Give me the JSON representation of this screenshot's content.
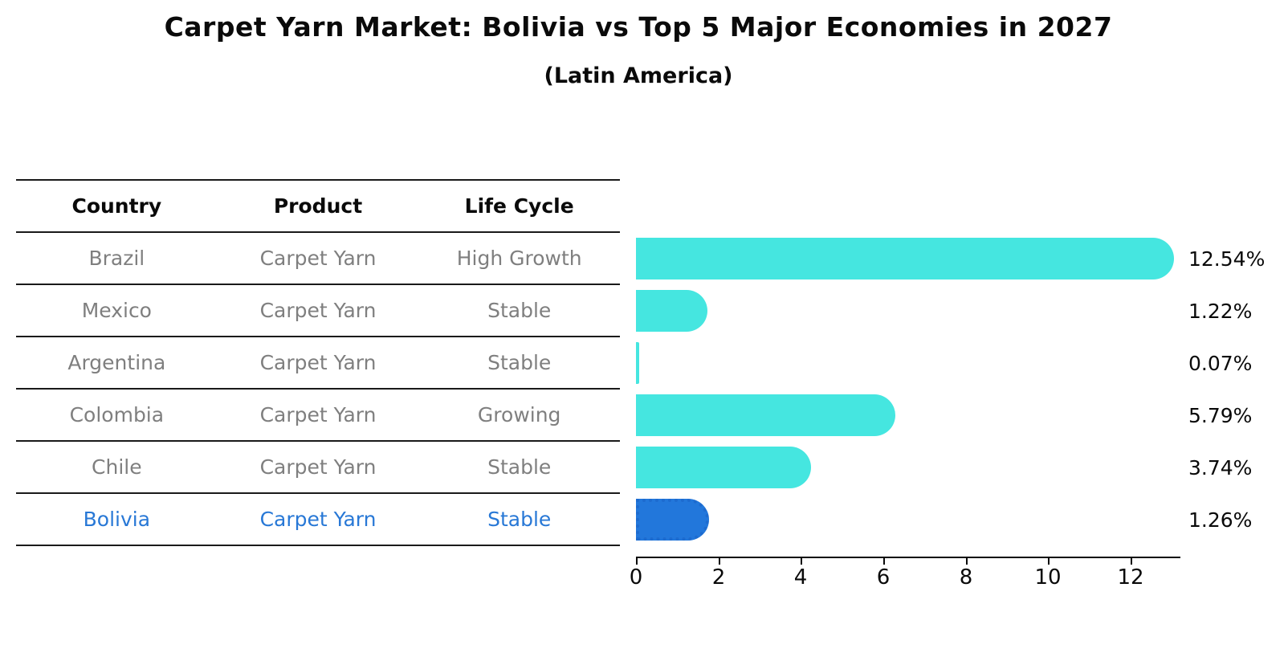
{
  "title": "Carpet Yarn Market: Bolivia vs Top 5 Major Economies in 2027",
  "subtitle": "(Latin America)",
  "table": {
    "headers": {
      "country": "Country",
      "product": "Product",
      "life_cycle": "Life Cycle"
    },
    "rows": [
      {
        "country": "Brazil",
        "product": "Carpet Yarn",
        "life_cycle": "High Growth",
        "highlight": false
      },
      {
        "country": "Mexico",
        "product": "Carpet Yarn",
        "life_cycle": "Stable",
        "highlight": false
      },
      {
        "country": "Argentina",
        "product": "Carpet Yarn",
        "life_cycle": "Stable",
        "highlight": false
      },
      {
        "country": "Colombia",
        "product": "Carpet Yarn",
        "life_cycle": "Growing",
        "highlight": false
      },
      {
        "country": "Chile",
        "product": "Carpet Yarn",
        "life_cycle": "Stable",
        "highlight": false
      },
      {
        "country": "Bolivia",
        "product": "Carpet Yarn",
        "life_cycle": "Stable",
        "highlight": true
      }
    ]
  },
  "chart_data": {
    "type": "bar",
    "orientation": "horizontal",
    "categories": [
      "Brazil",
      "Mexico",
      "Argentina",
      "Colombia",
      "Chile",
      "Bolivia"
    ],
    "values": [
      12.54,
      1.22,
      0.07,
      5.79,
      3.74,
      1.26
    ],
    "value_labels": [
      "12.54%",
      "1.22%",
      "0.07%",
      "5.79%",
      "3.74%",
      "1.26%"
    ],
    "title": "Carpet Yarn Market: Bolivia vs Top 5 Major Economies in 2027",
    "subtitle": "(Latin America)",
    "xlabel": "",
    "ylabel": "",
    "xticks": [
      0,
      2,
      4,
      6,
      8,
      10,
      12
    ],
    "xlim": [
      0,
      13.19
    ],
    "grid": false,
    "legend": "none",
    "bar_color": "#45e6e0",
    "highlight_color": "#2277db",
    "highlight_index": 5,
    "highlight_style": "dotted-border"
  }
}
